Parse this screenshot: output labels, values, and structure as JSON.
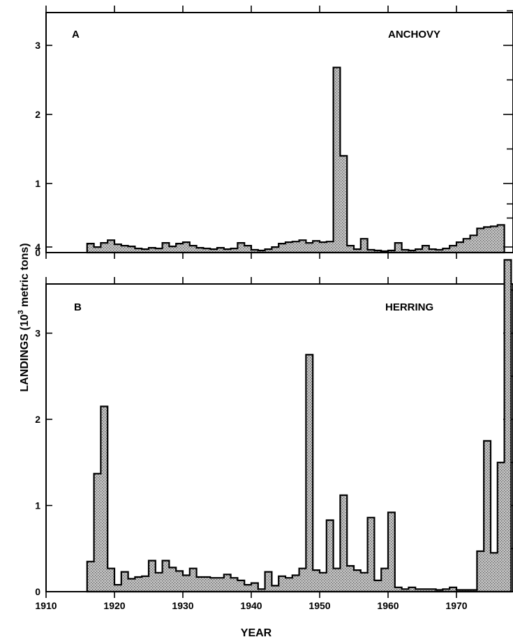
{
  "chart_data": [
    {
      "type": "area",
      "panel": "A",
      "series_label": "ANCHOVY",
      "ylim": [
        0,
        3.5
      ],
      "yticks": [
        "0",
        "1",
        "2",
        "3"
      ],
      "x": [
        1916,
        1917,
        1918,
        1919,
        1920,
        1921,
        1922,
        1923,
        1924,
        1925,
        1926,
        1927,
        1928,
        1929,
        1930,
        1931,
        1932,
        1933,
        1934,
        1935,
        1936,
        1937,
        1938,
        1939,
        1940,
        1941,
        1942,
        1943,
        1944,
        1945,
        1946,
        1947,
        1948,
        1949,
        1950,
        1951,
        1952,
        1953,
        1954,
        1955,
        1956,
        1957,
        1958,
        1959,
        1960,
        1961,
        1962,
        1963,
        1964,
        1965,
        1966,
        1967,
        1968,
        1969,
        1970,
        1971,
        1972,
        1973,
        1974,
        1975,
        1976
      ],
      "values": [
        0.13,
        0.08,
        0.14,
        0.18,
        0.12,
        0.1,
        0.09,
        0.06,
        0.05,
        0.07,
        0.06,
        0.14,
        0.09,
        0.13,
        0.15,
        0.1,
        0.07,
        0.06,
        0.05,
        0.07,
        0.05,
        0.06,
        0.14,
        0.1,
        0.04,
        0.03,
        0.05,
        0.08,
        0.13,
        0.15,
        0.16,
        0.18,
        0.14,
        0.17,
        0.15,
        0.16,
        2.68,
        1.4,
        0.1,
        0.05,
        0.2,
        0.04,
        0.03,
        0.02,
        0.03,
        0.14,
        0.04,
        0.03,
        0.05,
        0.1,
        0.05,
        0.04,
        0.06,
        0.1,
        0.15,
        0.2,
        0.25,
        0.35,
        0.37,
        0.38,
        0.4
      ]
    },
    {
      "type": "area",
      "panel": "B",
      "series_label": "HERRING",
      "ylim": [
        0,
        4.5
      ],
      "yticks": [
        "0",
        "1",
        "2",
        "3",
        "4"
      ],
      "x": [
        1916,
        1917,
        1918,
        1919,
        1920,
        1921,
        1922,
        1923,
        1924,
        1925,
        1926,
        1927,
        1928,
        1929,
        1930,
        1931,
        1932,
        1933,
        1934,
        1935,
        1936,
        1937,
        1938,
        1939,
        1940,
        1941,
        1942,
        1943,
        1944,
        1945,
        1946,
        1947,
        1948,
        1949,
        1950,
        1951,
        1952,
        1953,
        1954,
        1955,
        1956,
        1957,
        1958,
        1959,
        1960,
        1961,
        1962,
        1963,
        1964,
        1965,
        1966,
        1967,
        1968,
        1969,
        1970,
        1971,
        1972,
        1973,
        1974,
        1975,
        1976,
        1977
      ],
      "values": [
        0.35,
        1.37,
        2.15,
        0.27,
        0.08,
        0.23,
        0.15,
        0.17,
        0.18,
        0.36,
        0.22,
        0.36,
        0.28,
        0.24,
        0.19,
        0.27,
        0.17,
        0.17,
        0.16,
        0.16,
        0.2,
        0.16,
        0.13,
        0.08,
        0.1,
        0.03,
        0.23,
        0.07,
        0.18,
        0.16,
        0.19,
        0.27,
        2.75,
        0.25,
        0.22,
        0.83,
        0.27,
        1.12,
        0.3,
        0.25,
        0.22,
        0.86,
        0.13,
        0.27,
        0.92,
        0.05,
        0.03,
        0.05,
        0.03,
        0.03,
        0.03,
        0.02,
        0.03,
        0.05,
        0.02,
        0.02,
        0.02,
        0.47,
        1.75,
        0.45,
        1.5,
        3.85
      ]
    }
  ],
  "x_axis": {
    "xlabel": "YEAR",
    "ticks": [
      "1910",
      "1920",
      "1930",
      "1940",
      "1950",
      "1960",
      "1970"
    ]
  },
  "y_axis": {
    "ylabel_main": "LANDINGS (10",
    "ylabel_sup": "3",
    "ylabel_tail": " metric tons)"
  },
  "colors": {
    "fill": "#bdbdbd",
    "stipple_dot": "#555555",
    "line": "#000000"
  }
}
